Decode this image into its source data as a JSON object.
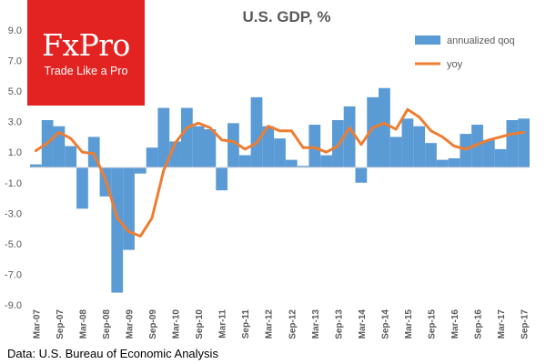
{
  "logo": {
    "name": "FxPro",
    "tagline": "Trade Like a Pro",
    "color": "#e32321"
  },
  "source": "Data: U.S. Bureau of Economic Analysis",
  "chart_data": {
    "type": "bar",
    "title": "U.S. GDP, %",
    "xlabel": "",
    "ylabel": "",
    "ylim": [
      -9.0,
      9.0
    ],
    "yticks": [
      "9.0",
      "7.0",
      "5.0",
      "3.0",
      "1.0",
      "-1.0",
      "-3.0",
      "-5.0",
      "-7.0",
      "-9.0"
    ],
    "grid": false,
    "legend_position": "top-right",
    "categories": [
      "Mar-07",
      "Jun-07",
      "Sep-07",
      "Dec-07",
      "Mar-08",
      "Jun-08",
      "Sep-08",
      "Dec-08",
      "Mar-09",
      "Jun-09",
      "Sep-09",
      "Dec-09",
      "Mar-10",
      "Jun-10",
      "Sep-10",
      "Dec-10",
      "Mar-11",
      "Jun-11",
      "Sep-11",
      "Dec-11",
      "Mar-12",
      "Jun-12",
      "Sep-12",
      "Dec-12",
      "Mar-13",
      "Jun-13",
      "Sep-13",
      "Dec-13",
      "Mar-14",
      "Jun-14",
      "Sep-14",
      "Dec-14",
      "Mar-15",
      "Jun-15",
      "Sep-15",
      "Dec-15",
      "Mar-16",
      "Jun-16",
      "Sep-16",
      "Dec-16",
      "Mar-17",
      "Jun-17",
      "Sep-17"
    ],
    "xtick_labels": [
      "Mar-07",
      "Sep-07",
      "Mar-08",
      "Sep-08",
      "Mar-09",
      "Sep-09",
      "Mar-10",
      "Sep-10",
      "Mar-11",
      "Sep-11",
      "Mar-12",
      "Sep-12",
      "Mar-13",
      "Sep-13",
      "Mar-14",
      "Sep-14",
      "Mar-15",
      "Sep-15",
      "Mar-16",
      "Sep-16",
      "Mar-17",
      "Sep-17"
    ],
    "series": [
      {
        "name": "annualized qoq",
        "type": "bar",
        "color": "#5b9bd5",
        "values": [
          0.2,
          3.1,
          2.7,
          1.4,
          -2.7,
          2.0,
          -1.9,
          -8.2,
          -5.4,
          -0.4,
          1.3,
          3.9,
          1.7,
          3.9,
          2.7,
          2.5,
          -1.5,
          2.9,
          0.8,
          4.6,
          2.7,
          1.9,
          0.5,
          0.1,
          2.8,
          0.8,
          3.1,
          4.0,
          -1.0,
          4.6,
          5.2,
          2.0,
          3.2,
          2.7,
          1.6,
          0.5,
          0.6,
          2.2,
          2.8,
          1.8,
          1.2,
          3.1,
          3.2
        ]
      },
      {
        "name": "yoy",
        "type": "line",
        "color": "#ed7d31",
        "values": [
          1.1,
          1.6,
          2.3,
          1.9,
          1.0,
          0.9,
          -0.8,
          -3.3,
          -4.2,
          -4.5,
          -3.3,
          -0.2,
          1.6,
          2.6,
          2.9,
          2.6,
          1.8,
          1.7,
          1.2,
          1.6,
          2.7,
          2.4,
          2.4,
          1.3,
          1.3,
          1.0,
          1.4,
          2.6,
          1.5,
          2.6,
          2.9,
          2.5,
          3.8,
          3.3,
          2.4,
          2.0,
          1.4,
          1.2,
          1.5,
          1.8,
          2.0,
          2.2,
          2.3
        ]
      }
    ]
  }
}
